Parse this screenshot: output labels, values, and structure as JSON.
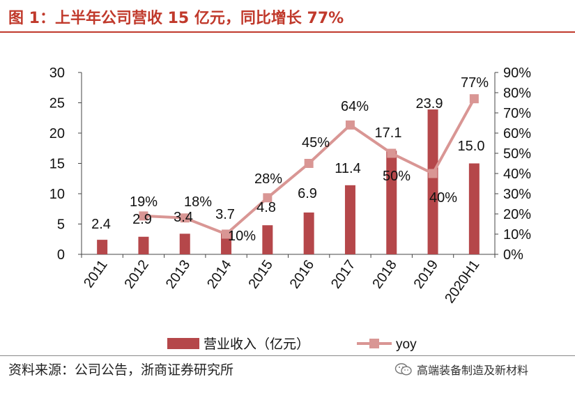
{
  "header": {
    "title": "图 1：上半年公司营收 15 亿元，同比增长 77%"
  },
  "footer": {
    "source": "资料来源：公司公告，浙商证券研究所",
    "watermark": "高端装备制造及新材料",
    "watermark_icon": "wechat-icon"
  },
  "colors": {
    "bar": "#b5474a",
    "line": "#d99694",
    "title": "#c0392b",
    "axis": "#444444"
  },
  "chart_data": {
    "type": "bar",
    "title": "上半年公司营收 15 亿元，同比增长 77%",
    "categories": [
      "2011",
      "2012",
      "2013",
      "2014",
      "2015",
      "2016",
      "2017",
      "2018",
      "2019",
      "2020H1"
    ],
    "series": [
      {
        "name": "营业收入（亿元）",
        "type": "bar",
        "axis": "left",
        "values": [
          2.4,
          2.9,
          3.4,
          3.7,
          4.8,
          6.9,
          11.4,
          17.1,
          23.9,
          15.0
        ],
        "labels": [
          "2.4",
          "2.9",
          "3.4",
          "3.7",
          "4.8",
          "6.9",
          "11.4",
          "17.1",
          "23.9",
          "15.0"
        ]
      },
      {
        "name": "yoy",
        "type": "line",
        "axis": "right",
        "values": [
          null,
          19,
          18,
          10,
          28,
          45,
          64,
          50,
          40,
          77
        ],
        "labels": [
          "",
          "19%",
          "18%",
          "10%",
          "28%",
          "45%",
          "64%",
          "50%",
          "40%",
          "77%"
        ]
      }
    ],
    "y_left": {
      "ylim": [
        0,
        30
      ],
      "ticks": [
        "0",
        "5",
        "10",
        "15",
        "20",
        "25",
        "30"
      ]
    },
    "y_right": {
      "ylim": [
        0,
        90
      ],
      "ticks": [
        "0%",
        "10%",
        "20%",
        "30%",
        "40%",
        "50%",
        "60%",
        "70%",
        "80%",
        "90%"
      ]
    },
    "legend": {
      "position": "bottom"
    }
  }
}
